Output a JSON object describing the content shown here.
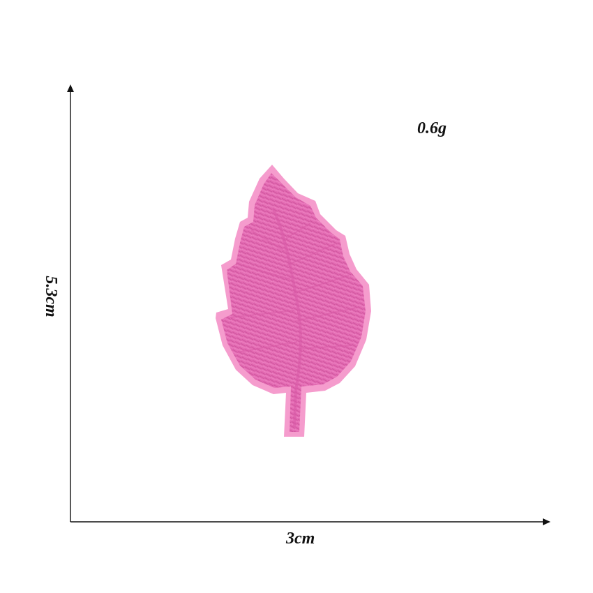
{
  "labels": {
    "weight": "0.6g",
    "width": "3cm",
    "height": "5.3cm"
  },
  "colors": {
    "leaf_fill": "#e66fb6",
    "leaf_border": "#f59ccd",
    "stitch": "#c84e97",
    "axis": "#111111"
  },
  "icons": {
    "leaf": "pink-leaf-patch",
    "axis_arrow": "arrow-head"
  }
}
